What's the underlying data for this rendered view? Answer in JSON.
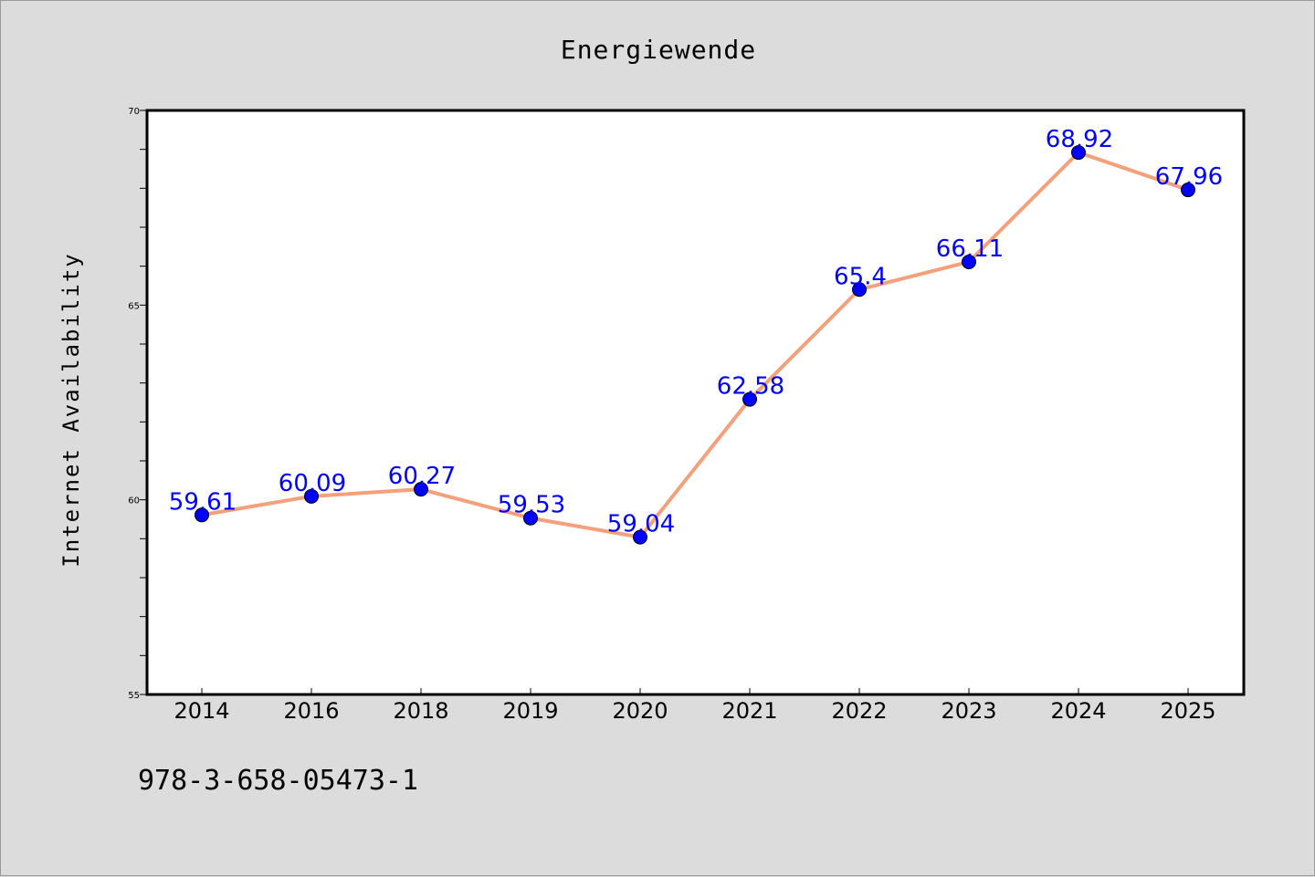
{
  "chart_data": {
    "type": "line",
    "title": "Energiewende",
    "xlabel": "",
    "ylabel": "Internet Availability",
    "categories": [
      "2014",
      "2016",
      "2018",
      "2019",
      "2020",
      "2021",
      "2022",
      "2023",
      "2024",
      "2025"
    ],
    "series": [
      {
        "values": [
          59.61,
          60.09,
          60.27,
          59.53,
          59.04,
          62.58,
          65.4,
          66.11,
          68.92,
          67.96
        ],
        "labels": [
          "59.61",
          "60.09",
          "60.27",
          "59.53",
          "59.04",
          "62.58",
          "65.4",
          "66.11",
          "68.92",
          "67.96"
        ]
      }
    ],
    "ylim": [
      55,
      70
    ],
    "yticks": [
      "55",
      "60",
      "65",
      "70"
    ],
    "grid": false,
    "colors": {
      "line": "#f4a07a",
      "marker": "#0000ff",
      "label": "#0000ff",
      "background": "#dcdcdc",
      "plot_background": "#ffffff"
    }
  },
  "footnote": "978-3-658-05473-1"
}
